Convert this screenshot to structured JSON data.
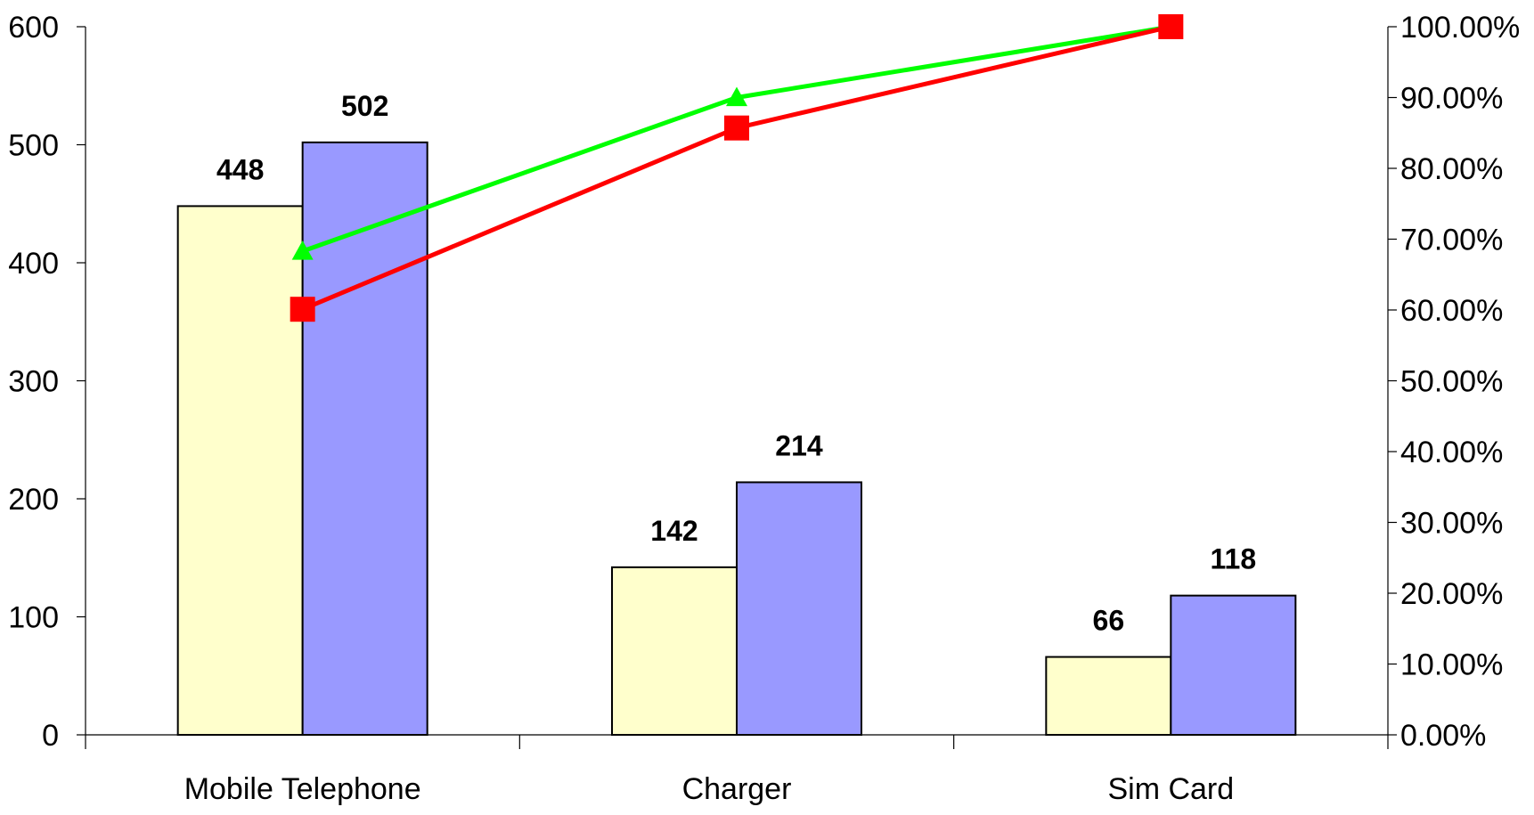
{
  "chart_data": {
    "type": "bar",
    "title": "",
    "xlabel": "",
    "ylabel": "",
    "categories": [
      "Mobile Telephone",
      "Charger",
      "Sim Card"
    ],
    "ylim": [
      0,
      600
    ],
    "y_ticks": [
      "0",
      "100",
      "200",
      "300",
      "400",
      "500",
      "600"
    ],
    "y2lim": [
      0,
      100
    ],
    "y2_ticks": [
      "0.00%",
      "10.00%",
      "20.00%",
      "30.00%",
      "40.00%",
      "50.00%",
      "60.00%",
      "70.00%",
      "80.00%",
      "90.00%",
      "100.00%"
    ],
    "grid": false,
    "legend": "none",
    "series": [
      {
        "type": "bar",
        "axis": "left",
        "values": [
          448,
          142,
          66
        ],
        "labels": [
          "448",
          "142",
          "66"
        ],
        "color": "#FFFFCC"
      },
      {
        "type": "bar",
        "axis": "left",
        "values": [
          502,
          214,
          118
        ],
        "labels": [
          "502",
          "214",
          "118"
        ],
        "color": "#9999FF"
      },
      {
        "type": "line",
        "axis": "right",
        "marker": "triangle",
        "values": [
          68.3,
          90.0,
          100.0
        ],
        "color": "#00FF00"
      },
      {
        "type": "line",
        "axis": "right",
        "marker": "square",
        "values": [
          60.1,
          85.7,
          100.0
        ],
        "color": "#FF0000"
      }
    ]
  }
}
